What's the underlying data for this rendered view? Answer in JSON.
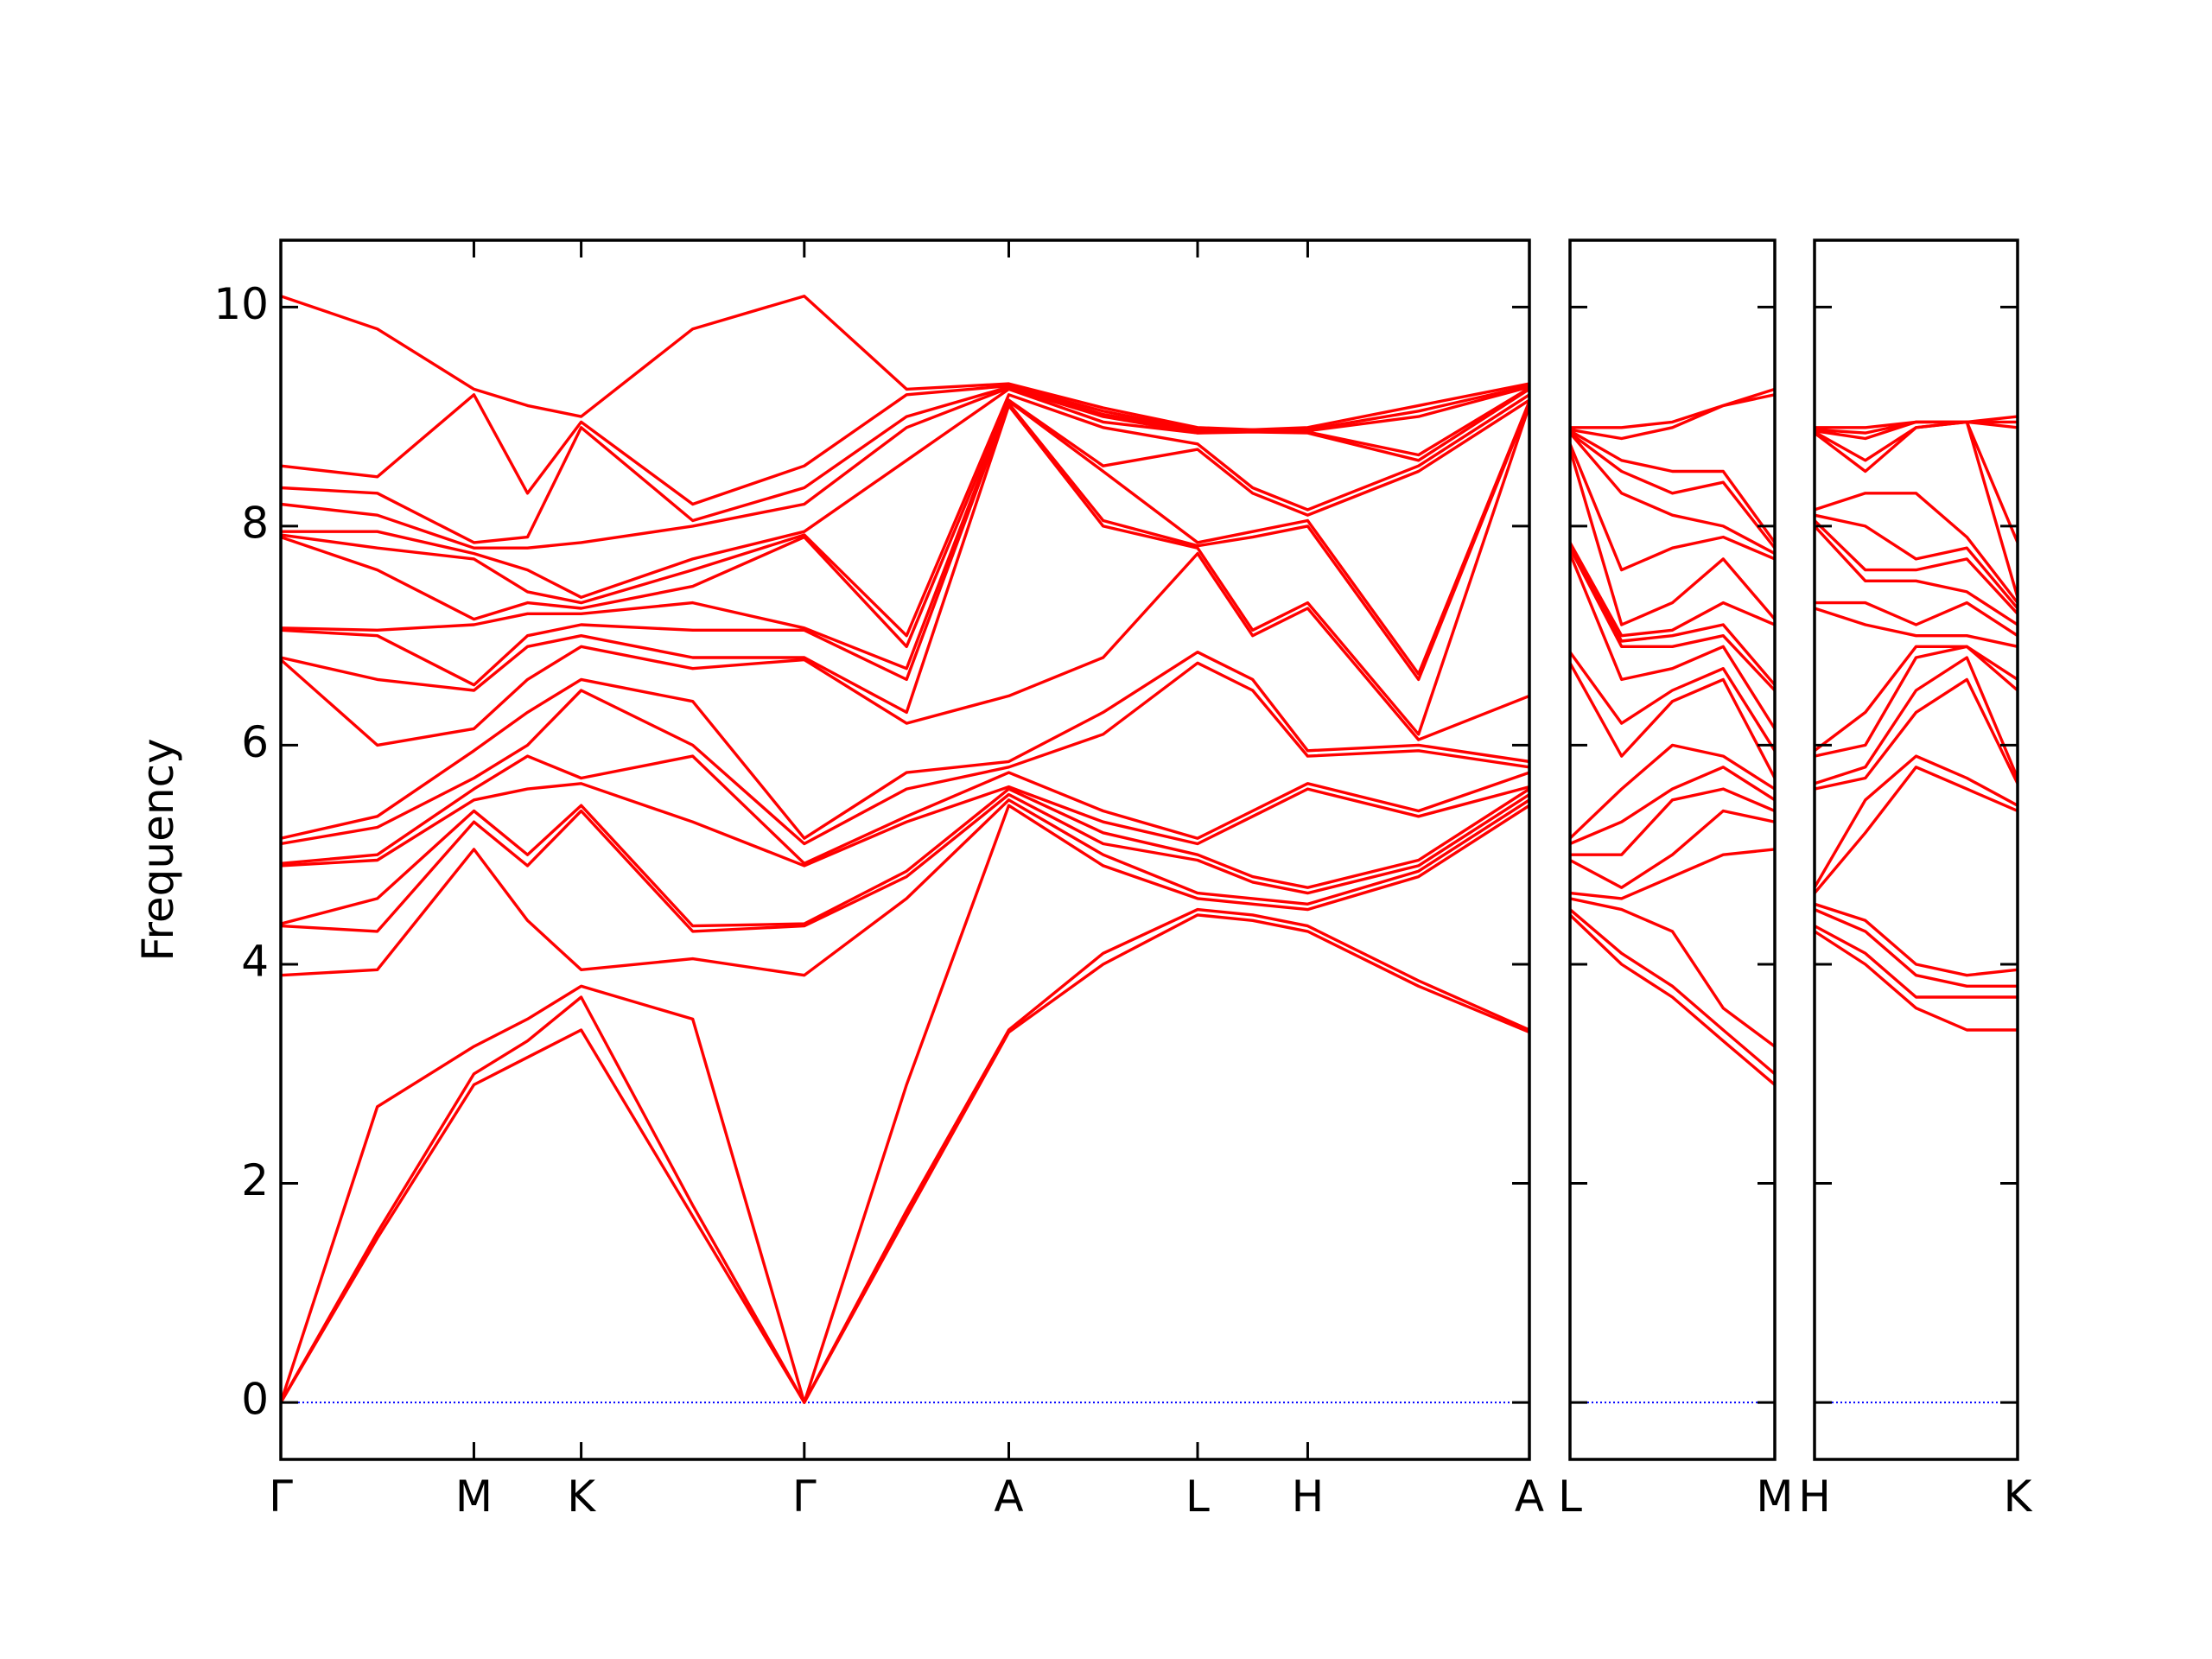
{
  "chart_data": [
    {
      "type": "line",
      "ylabel": "Frequency",
      "color": "#ff0000",
      "line_width": 2,
      "hline": {
        "value": 0,
        "color": "#0000ff",
        "style": "dotted"
      },
      "show_ytick_labels": true,
      "ylim": [
        -0.52,
        10.61
      ],
      "yticks": [
        0,
        2,
        4,
        6,
        8,
        10
      ],
      "xlim": [
        0,
        8.73
      ],
      "xticks": [
        {
          "value": 0,
          "label": "Γ"
        },
        {
          "value": 1.35,
          "label": "M"
        },
        {
          "value": 2.1,
          "label": "K"
        },
        {
          "value": 3.66,
          "label": "Γ"
        },
        {
          "value": 5.09,
          "label": "A"
        },
        {
          "value": 6.41,
          "label": "L"
        },
        {
          "value": 7.18,
          "label": "H"
        },
        {
          "value": 8.73,
          "label": "A"
        }
      ],
      "x": [
        0,
        0.675,
        1.35,
        1.725,
        2.1,
        2.88,
        3.66,
        4.375,
        5.09,
        5.75,
        6.41,
        6.795,
        7.18,
        7.955,
        8.73
      ],
      "series": [
        {
          "values": [
            0,
            1.5,
            2.9,
            3.15,
            3.4,
            1.7,
            0,
            1.7,
            3.38,
            4.0,
            4.45,
            4.4,
            4.3,
            3.8,
            3.38
          ]
        },
        {
          "values": [
            0,
            1.55,
            3.0,
            3.3,
            3.7,
            1.8,
            0,
            1.75,
            3.4,
            4.1,
            4.5,
            4.45,
            4.35,
            3.85,
            3.4
          ]
        },
        {
          "values": [
            0,
            2.7,
            3.25,
            3.5,
            3.8,
            3.5,
            0,
            2.9,
            5.45,
            4.9,
            4.6,
            4.55,
            4.5,
            4.8,
            5.45
          ]
        },
        {
          "values": [
            3.9,
            3.95,
            5.05,
            4.4,
            3.95,
            4.05,
            3.9,
            4.6,
            5.5,
            5.0,
            4.65,
            4.6,
            4.55,
            4.85,
            5.5
          ]
        },
        {
          "values": [
            4.35,
            4.3,
            5.3,
            4.9,
            5.4,
            4.3,
            4.35,
            4.8,
            5.55,
            5.1,
            4.95,
            4.75,
            4.65,
            4.9,
            5.55
          ]
        },
        {
          "values": [
            4.37,
            4.6,
            5.4,
            5.0,
            5.45,
            4.35,
            4.37,
            4.85,
            5.6,
            5.2,
            5.0,
            4.8,
            4.7,
            4.95,
            5.6
          ]
        },
        {
          "values": [
            4.9,
            4.95,
            5.5,
            5.6,
            5.65,
            5.3,
            4.9,
            5.3,
            5.62,
            5.3,
            5.1,
            5.35,
            5.6,
            5.35,
            5.62
          ]
        },
        {
          "values": [
            4.92,
            5.0,
            5.6,
            5.9,
            5.7,
            5.9,
            4.92,
            5.35,
            5.75,
            5.4,
            5.15,
            5.4,
            5.65,
            5.4,
            5.75
          ]
        },
        {
          "values": [
            5.1,
            5.25,
            5.7,
            6.0,
            6.5,
            6.0,
            5.1,
            5.6,
            5.8,
            6.1,
            6.75,
            6.5,
            5.9,
            5.95,
            5.8
          ]
        },
        {
          "values": [
            5.15,
            5.35,
            5.95,
            6.3,
            6.6,
            6.4,
            5.15,
            5.75,
            5.85,
            6.3,
            6.85,
            6.6,
            5.95,
            6.0,
            5.85
          ]
        },
        {
          "values": [
            6.78,
            6.0,
            6.15,
            6.6,
            6.9,
            6.7,
            6.78,
            6.2,
            6.45,
            6.8,
            7.75,
            7.0,
            7.25,
            6.05,
            6.45
          ]
        },
        {
          "values": [
            6.8,
            6.6,
            6.5,
            6.9,
            7.0,
            6.8,
            6.8,
            6.3,
            9.1,
            8.0,
            7.8,
            7.05,
            7.3,
            6.1,
            9.1
          ]
        },
        {
          "values": [
            7.05,
            7.0,
            6.55,
            7.0,
            7.1,
            7.05,
            7.05,
            6.6,
            9.12,
            8.05,
            7.82,
            7.9,
            8.0,
            6.6,
            9.12
          ]
        },
        {
          "values": [
            7.07,
            7.05,
            7.1,
            7.2,
            7.2,
            7.3,
            7.07,
            6.7,
            9.14,
            8.5,
            7.85,
            7.95,
            8.05,
            6.65,
            9.14
          ]
        },
        {
          "values": [
            7.9,
            7.6,
            7.15,
            7.3,
            7.25,
            7.45,
            7.9,
            6.9,
            9.15,
            8.55,
            8.7,
            8.3,
            8.1,
            8.5,
            9.15
          ]
        },
        {
          "values": [
            7.92,
            7.8,
            7.7,
            7.4,
            7.3,
            7.6,
            7.92,
            7.0,
            9.2,
            8.9,
            8.75,
            8.35,
            8.15,
            8.55,
            9.2
          ]
        },
        {
          "values": [
            7.95,
            7.95,
            7.75,
            7.6,
            7.35,
            7.7,
            7.95,
            8.6,
            9.25,
            8.95,
            8.85,
            8.86,
            8.85,
            8.6,
            9.25
          ]
        },
        {
          "values": [
            8.2,
            8.1,
            7.8,
            7.8,
            7.85,
            8.0,
            8.2,
            8.9,
            9.26,
            9.0,
            8.85,
            8.87,
            8.86,
            8.65,
            9.26
          ]
        },
        {
          "values": [
            8.35,
            8.3,
            7.85,
            7.9,
            8.9,
            8.05,
            8.35,
            9.0,
            9.27,
            9.02,
            8.87,
            8.87,
            8.87,
            9.0,
            9.27
          ]
        },
        {
          "values": [
            8.55,
            8.45,
            9.2,
            8.3,
            8.95,
            8.2,
            8.55,
            9.2,
            9.28,
            9.05,
            8.88,
            8.88,
            8.88,
            9.05,
            9.28
          ]
        },
        {
          "values": [
            10.1,
            9.8,
            9.25,
            9.1,
            9.0,
            9.8,
            10.1,
            9.25,
            9.3,
            9.08,
            8.9,
            8.88,
            8.9,
            9.1,
            9.3
          ]
        }
      ]
    },
    {
      "type": "line",
      "color": "#ff0000",
      "line_width": 2,
      "hline": {
        "value": 0,
        "color": "#0000ff",
        "style": "dotted"
      },
      "show_ytick_labels": false,
      "ylim": [
        -0.52,
        10.61
      ],
      "yticks": [
        0,
        2,
        4,
        6,
        8,
        10
      ],
      "xlim": [
        0,
        1.43
      ],
      "xticks": [
        {
          "value": 0,
          "label": "L"
        },
        {
          "value": 1.43,
          "label": "M"
        }
      ],
      "x": [
        0,
        0.36,
        0.715,
        1.07,
        1.43
      ],
      "series": [
        {
          "values": [
            4.45,
            4.0,
            3.7,
            3.3,
            2.9
          ]
        },
        {
          "values": [
            4.5,
            4.1,
            3.8,
            3.4,
            3.0
          ]
        },
        {
          "values": [
            4.6,
            4.5,
            4.3,
            3.6,
            3.25
          ]
        },
        {
          "values": [
            4.65,
            4.6,
            4.8,
            5.0,
            5.05
          ]
        },
        {
          "values": [
            4.95,
            4.7,
            5.0,
            5.4,
            5.3
          ]
        },
        {
          "values": [
            5.0,
            5.0,
            5.5,
            5.6,
            5.4
          ]
        },
        {
          "values": [
            5.1,
            5.3,
            5.6,
            5.8,
            5.5
          ]
        },
        {
          "values": [
            5.15,
            5.6,
            6.0,
            5.9,
            5.6
          ]
        },
        {
          "values": [
            6.75,
            5.9,
            6.4,
            6.6,
            5.7
          ]
        },
        {
          "values": [
            6.85,
            6.2,
            6.5,
            6.7,
            5.95
          ]
        },
        {
          "values": [
            7.75,
            6.6,
            6.7,
            6.9,
            6.15
          ]
        },
        {
          "values": [
            7.8,
            6.9,
            6.9,
            7.0,
            6.5
          ]
        },
        {
          "values": [
            7.82,
            6.95,
            7.0,
            7.1,
            6.55
          ]
        },
        {
          "values": [
            7.85,
            7.0,
            7.05,
            7.3,
            7.1
          ]
        },
        {
          "values": [
            8.7,
            7.1,
            7.3,
            7.7,
            7.15
          ]
        },
        {
          "values": [
            8.75,
            7.6,
            7.8,
            7.9,
            7.7
          ]
        },
        {
          "values": [
            8.85,
            8.3,
            8.1,
            8.0,
            7.75
          ]
        },
        {
          "values": [
            8.85,
            8.5,
            8.3,
            8.4,
            7.8
          ]
        },
        {
          "values": [
            8.87,
            8.6,
            8.5,
            8.5,
            7.85
          ]
        },
        {
          "values": [
            8.88,
            8.8,
            8.9,
            9.1,
            9.2
          ]
        },
        {
          "values": [
            8.9,
            8.9,
            8.95,
            9.1,
            9.25
          ]
        }
      ]
    },
    {
      "type": "line",
      "color": "#ff0000",
      "line_width": 2,
      "hline": {
        "value": 0,
        "color": "#0000ff",
        "style": "dotted"
      },
      "show_ytick_labels": false,
      "ylim": [
        -0.52,
        10.61
      ],
      "yticks": [
        0,
        2,
        4,
        6,
        8,
        10
      ],
      "xlim": [
        0,
        1.42
      ],
      "xticks": [
        {
          "value": 0,
          "label": "H"
        },
        {
          "value": 1.42,
          "label": "K"
        }
      ],
      "x": [
        0,
        0.355,
        0.71,
        1.065,
        1.42
      ],
      "series": [
        {
          "values": [
            4.3,
            4.0,
            3.6,
            3.4,
            3.4
          ]
        },
        {
          "values": [
            4.35,
            4.1,
            3.7,
            3.7,
            3.7
          ]
        },
        {
          "values": [
            4.5,
            4.3,
            3.9,
            3.8,
            3.8
          ]
        },
        {
          "values": [
            4.55,
            4.4,
            4.0,
            3.9,
            3.95
          ]
        },
        {
          "values": [
            4.65,
            5.2,
            5.8,
            5.6,
            5.4
          ]
        },
        {
          "values": [
            4.7,
            5.5,
            5.9,
            5.7,
            5.45
          ]
        },
        {
          "values": [
            5.6,
            5.7,
            6.3,
            6.6,
            5.65
          ]
        },
        {
          "values": [
            5.65,
            5.8,
            6.5,
            6.8,
            5.7
          ]
        },
        {
          "values": [
            5.9,
            6.0,
            6.8,
            6.9,
            6.5
          ]
        },
        {
          "values": [
            5.95,
            6.3,
            6.9,
            6.9,
            6.6
          ]
        },
        {
          "values": [
            7.25,
            7.1,
            7.0,
            7.0,
            6.9
          ]
        },
        {
          "values": [
            7.3,
            7.3,
            7.1,
            7.3,
            7.0
          ]
        },
        {
          "values": [
            8.0,
            7.5,
            7.5,
            7.4,
            7.1
          ]
        },
        {
          "values": [
            8.05,
            7.6,
            7.6,
            7.7,
            7.2
          ]
        },
        {
          "values": [
            8.1,
            8.0,
            7.7,
            7.8,
            7.25
          ]
        },
        {
          "values": [
            8.15,
            8.3,
            8.3,
            7.9,
            7.3
          ]
        },
        {
          "values": [
            8.85,
            8.5,
            8.9,
            8.95,
            7.35
          ]
        },
        {
          "values": [
            8.86,
            8.6,
            8.9,
            8.95,
            7.85
          ]
        },
        {
          "values": [
            8.87,
            8.8,
            8.95,
            8.95,
            8.9
          ]
        },
        {
          "values": [
            8.88,
            8.85,
            8.95,
            8.95,
            8.95
          ]
        },
        {
          "values": [
            8.9,
            8.9,
            8.95,
            8.95,
            9.0
          ]
        }
      ]
    }
  ]
}
